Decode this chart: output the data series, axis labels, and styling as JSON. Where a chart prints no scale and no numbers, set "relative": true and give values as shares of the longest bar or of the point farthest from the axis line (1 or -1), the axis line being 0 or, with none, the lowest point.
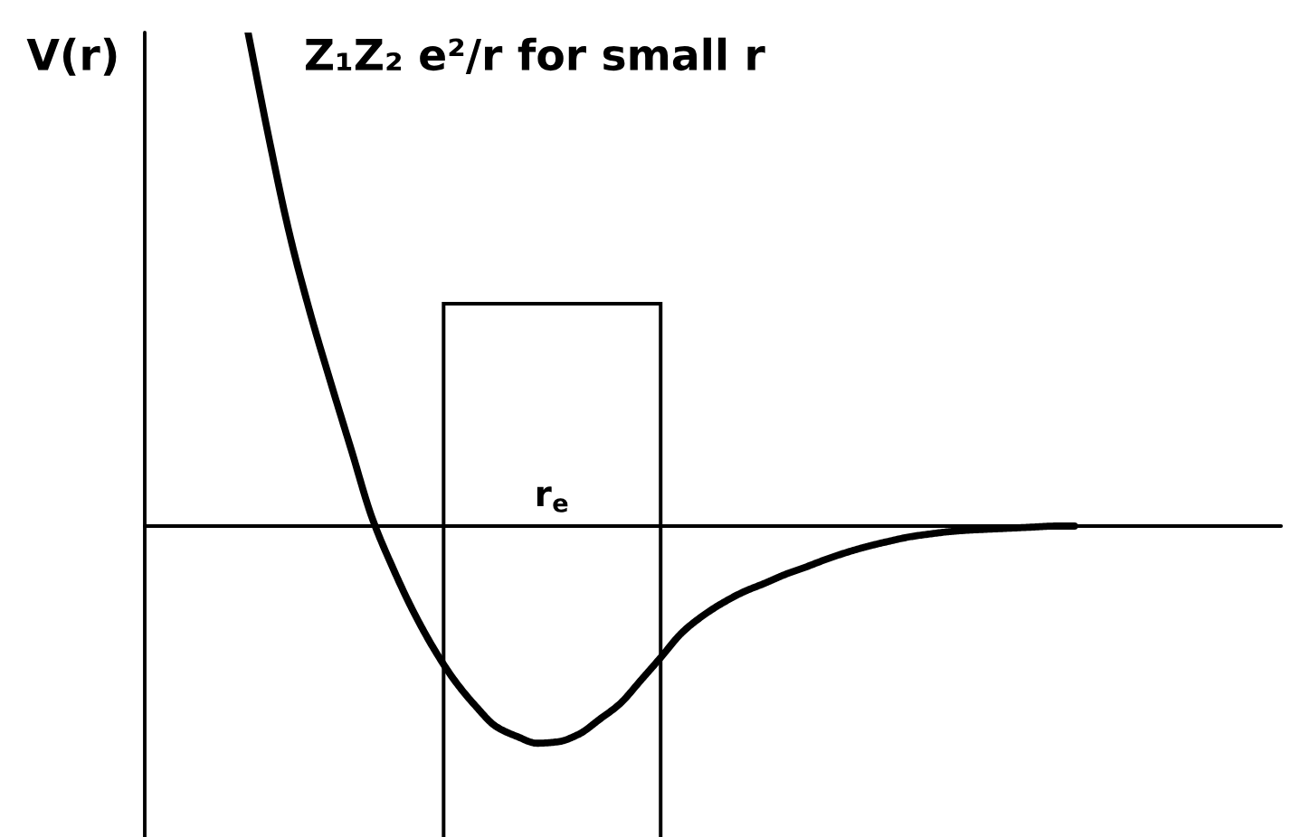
{
  "chart_data": {
    "type": "line",
    "relative": true,
    "ylabel": "V(r)",
    "color": "#000000",
    "categories": [
      null,
      null,
      null,
      null,
      null,
      null,
      null,
      null,
      null,
      null,
      null,
      null,
      null,
      null,
      null,
      null,
      null,
      null,
      null,
      null,
      null,
      null,
      null,
      null,
      null,
      null,
      null,
      null,
      null,
      null,
      null,
      null,
      null,
      null,
      null,
      null,
      null,
      null,
      null,
      null,
      null,
      null,
      null,
      null,
      null,
      null,
      null,
      null,
      null,
      null,
      null,
      null,
      null,
      null,
      null,
      null
    ],
    "values": [
      null,
      null,
      null,
      null,
      null,
      1.0,
      0.788,
      0.593,
      0.433,
      0.291,
      0.154,
      0.017,
      -0.084,
      -0.173,
      -0.249,
      -0.313,
      -0.364,
      -0.406,
      -0.426,
      -0.44,
      -0.437,
      -0.422,
      -0.392,
      -0.36,
      -0.313,
      -0.265,
      -0.216,
      -0.182,
      -0.155,
      -0.133,
      -0.116,
      -0.098,
      -0.083,
      -0.067,
      -0.053,
      -0.041,
      -0.031,
      -0.022,
      -0.016,
      -0.011,
      -0.008,
      -0.006,
      -0.004,
      -0.002,
      0,
      0,
      null,
      null,
      null,
      null,
      null,
      null,
      null,
      null,
      null,
      null
    ],
    "annotations": [
      "Z₁Z₂ e²/r for small r",
      "r$_{e}$"
    ],
    "grid": false,
    "legend": false
  }
}
